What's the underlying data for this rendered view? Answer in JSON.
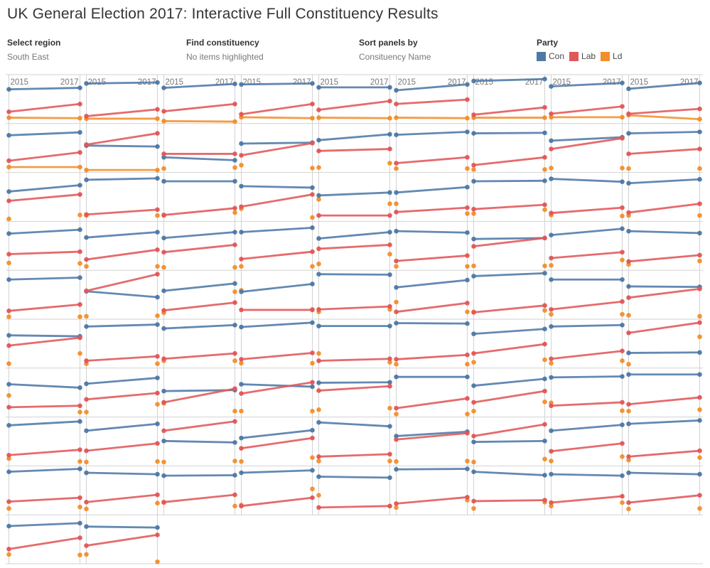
{
  "header": {
    "title": "UK General Election 2017: Interactive Full Constituency Results"
  },
  "controls": {
    "select_region": {
      "label": "Select region",
      "value": "South East"
    },
    "find_constituency": {
      "label": "Find constituency",
      "value": "No items highlighted"
    },
    "sort_panels_by": {
      "label": "Sort panels by",
      "value": "Consituency Name"
    }
  },
  "legend": {
    "title": "Party",
    "entries": [
      {
        "label": "Con",
        "color": "#4e79a7"
      },
      {
        "label": "Lab",
        "color": "#e15759"
      },
      {
        "label": "Ld",
        "color": "#f28e2b"
      }
    ]
  },
  "colors": {
    "gridline": "#d2d2d2",
    "axis_label": "#787878",
    "title_text": "#343434"
  },
  "chart_data": {
    "type": "line",
    "variant": "slope-graph small multiples (one panel per constituency)",
    "x_labels": [
      "2015",
      "2017"
    ],
    "grid": {
      "columns": 9,
      "rows": 10,
      "panel_counts_per_row": [
        9,
        9,
        9,
        9,
        9,
        9,
        9,
        9,
        9,
        2
      ]
    },
    "value_scale": "percent of panel height: 0 = bottom gridline, 100 = top gridline",
    "legend_position": "top-right",
    "series": [
      {
        "name": "Con",
        "color": "#4e79a7"
      },
      {
        "name": "Lab",
        "color": "#e15759"
      },
      {
        "name": "Ld",
        "color": "#f28e2b"
      }
    ],
    "panel_format": [
      "con_2015",
      "con_2017",
      "lab_2015",
      "lab_2017",
      "ld_2015",
      "ld_2017",
      "ld_drawn_as_line"
    ],
    "panels": [
      [
        70,
        73,
        24,
        40,
        12,
        11,
        1
      ],
      [
        82,
        84,
        15,
        29,
        10,
        10,
        1
      ],
      [
        73,
        81,
        25,
        40,
        5,
        4,
        1
      ],
      [
        80,
        82,
        19,
        40,
        13,
        11,
        1
      ],
      [
        74,
        74,
        28,
        46,
        12,
        11,
        1
      ],
      [
        68,
        80,
        40,
        49,
        12,
        11,
        1
      ],
      [
        87,
        91,
        18,
        33,
        12,
        12,
        1
      ],
      [
        76,
        83,
        20,
        35,
        13,
        13,
        1
      ],
      [
        71,
        83,
        20,
        30,
        17,
        9,
        1
      ],
      [
        76,
        82,
        24,
        41,
        11,
        11,
        1
      ],
      [
        55,
        53,
        57,
        80,
        5,
        5,
        1
      ],
      [
        31,
        25,
        38,
        38,
        8,
        10,
        0
      ],
      [
        59,
        61,
        35,
        60,
        15,
        9,
        0
      ],
      [
        66,
        78,
        44,
        48,
        10,
        19,
        0
      ],
      [
        77,
        83,
        19,
        31,
        8,
        8,
        0
      ],
      [
        80,
        81,
        15,
        31,
        6,
        6,
        0
      ],
      [
        65,
        72,
        48,
        70,
        9,
        9,
        0
      ],
      [
        80,
        83,
        38,
        48,
        8,
        8,
        0
      ],
      [
        61,
        74,
        42,
        55,
        5,
        13,
        0
      ],
      [
        85,
        88,
        14,
        24,
        12,
        12,
        0
      ],
      [
        82,
        82,
        13,
        27,
        12,
        18,
        0
      ],
      [
        72,
        69,
        30,
        55,
        26,
        8,
        0
      ],
      [
        53,
        59,
        12,
        12,
        45,
        36,
        0
      ],
      [
        59,
        70,
        19,
        28,
        36,
        16,
        0
      ],
      [
        82,
        83,
        25,
        34,
        16,
        24,
        0
      ],
      [
        87,
        81,
        17,
        28,
        13,
        11,
        0
      ],
      [
        78,
        86,
        18,
        36,
        12,
        12,
        0
      ],
      [
        75,
        83,
        33,
        38,
        15,
        14,
        0
      ],
      [
        67,
        78,
        22,
        42,
        8,
        8,
        0
      ],
      [
        66,
        78,
        37,
        52,
        6,
        6,
        0
      ],
      [
        78,
        87,
        23,
        38,
        8,
        8,
        0
      ],
      [
        65,
        78,
        44,
        52,
        13,
        33,
        0
      ],
      [
        80,
        77,
        19,
        30,
        8,
        8,
        0
      ],
      [
        64,
        66,
        49,
        66,
        9,
        9,
        0
      ],
      [
        72,
        85,
        25,
        37,
        10,
        21,
        0
      ],
      [
        80,
        76,
        18,
        31,
        12,
        19,
        0
      ],
      [
        81,
        85,
        17,
        30,
        5,
        5,
        0
      ],
      [
        57,
        45,
        58,
        92,
        6,
        7,
        0
      ],
      [
        58,
        73,
        18,
        34,
        13,
        56,
        0
      ],
      [
        56,
        72,
        19,
        19,
        59,
        20,
        0
      ],
      [
        92,
        91,
        20,
        26,
        15,
        20,
        0
      ],
      [
        65,
        80,
        15,
        33,
        35,
        15,
        0
      ],
      [
        88,
        94,
        14,
        28,
        15,
        18,
        0
      ],
      [
        81,
        81,
        20,
        36,
        10,
        10,
        0
      ],
      [
        67,
        66,
        44,
        62,
        8,
        6,
        0
      ],
      [
        67,
        65,
        46,
        62,
        9,
        30,
        0
      ],
      [
        85,
        89,
        15,
        24,
        9,
        9,
        0
      ],
      [
        81,
        88,
        19,
        30,
        15,
        15,
        0
      ],
      [
        84,
        93,
        18,
        31,
        10,
        10,
        0
      ],
      [
        86,
        86,
        15,
        19,
        30,
        12,
        0
      ],
      [
        92,
        91,
        18,
        27,
        8,
        8,
        0
      ],
      [
        70,
        80,
        30,
        49,
        12,
        17,
        0
      ],
      [
        85,
        88,
        19,
        35,
        10,
        15,
        0
      ],
      [
        31,
        32,
        72,
        93,
        8,
        64,
        0
      ],
      [
        67,
        60,
        20,
        23,
        44,
        10,
        0
      ],
      [
        68,
        80,
        36,
        49,
        10,
        26,
        0
      ],
      [
        53,
        55,
        30,
        58,
        28,
        12,
        0
      ],
      [
        67,
        62,
        48,
        71,
        12,
        12,
        0
      ],
      [
        70,
        71,
        54,
        63,
        15,
        18,
        0
      ],
      [
        82,
        82,
        18,
        38,
        6,
        6,
        0
      ],
      [
        64,
        78,
        30,
        53,
        12,
        31,
        0
      ],
      [
        81,
        83,
        23,
        30,
        29,
        13,
        0
      ],
      [
        87,
        87,
        26,
        40,
        12,
        15,
        0
      ],
      [
        83,
        91,
        22,
        33,
        15,
        9,
        0
      ],
      [
        72,
        86,
        31,
        46,
        8,
        9,
        0
      ],
      [
        51,
        48,
        72,
        91,
        8,
        10,
        0
      ],
      [
        57,
        73,
        36,
        57,
        9,
        17,
        0
      ],
      [
        89,
        81,
        19,
        24,
        10,
        10,
        0
      ],
      [
        61,
        70,
        54,
        67,
        9,
        10,
        0
      ],
      [
        49,
        51,
        61,
        85,
        8,
        14,
        0
      ],
      [
        72,
        84,
        30,
        46,
        10,
        19,
        0
      ],
      [
        86,
        93,
        19,
        31,
        12,
        17,
        0
      ],
      [
        88,
        94,
        27,
        35,
        13,
        16,
        0
      ],
      [
        86,
        83,
        26,
        41,
        12,
        24,
        0
      ],
      [
        80,
        81,
        26,
        41,
        25,
        18,
        0
      ],
      [
        86,
        91,
        18,
        35,
        20,
        53,
        0
      ],
      [
        78,
        76,
        15,
        18,
        40,
        18,
        0
      ],
      [
        93,
        94,
        23,
        36,
        15,
        30,
        0
      ],
      [
        88,
        81,
        28,
        30,
        13,
        26,
        0
      ],
      [
        83,
        80,
        25,
        38,
        18,
        25,
        0
      ],
      [
        86,
        83,
        25,
        40,
        12,
        13,
        0
      ],
      [
        77,
        83,
        30,
        53,
        19,
        18,
        0
      ],
      [
        76,
        74,
        37,
        59,
        19,
        4,
        0
      ]
    ]
  }
}
